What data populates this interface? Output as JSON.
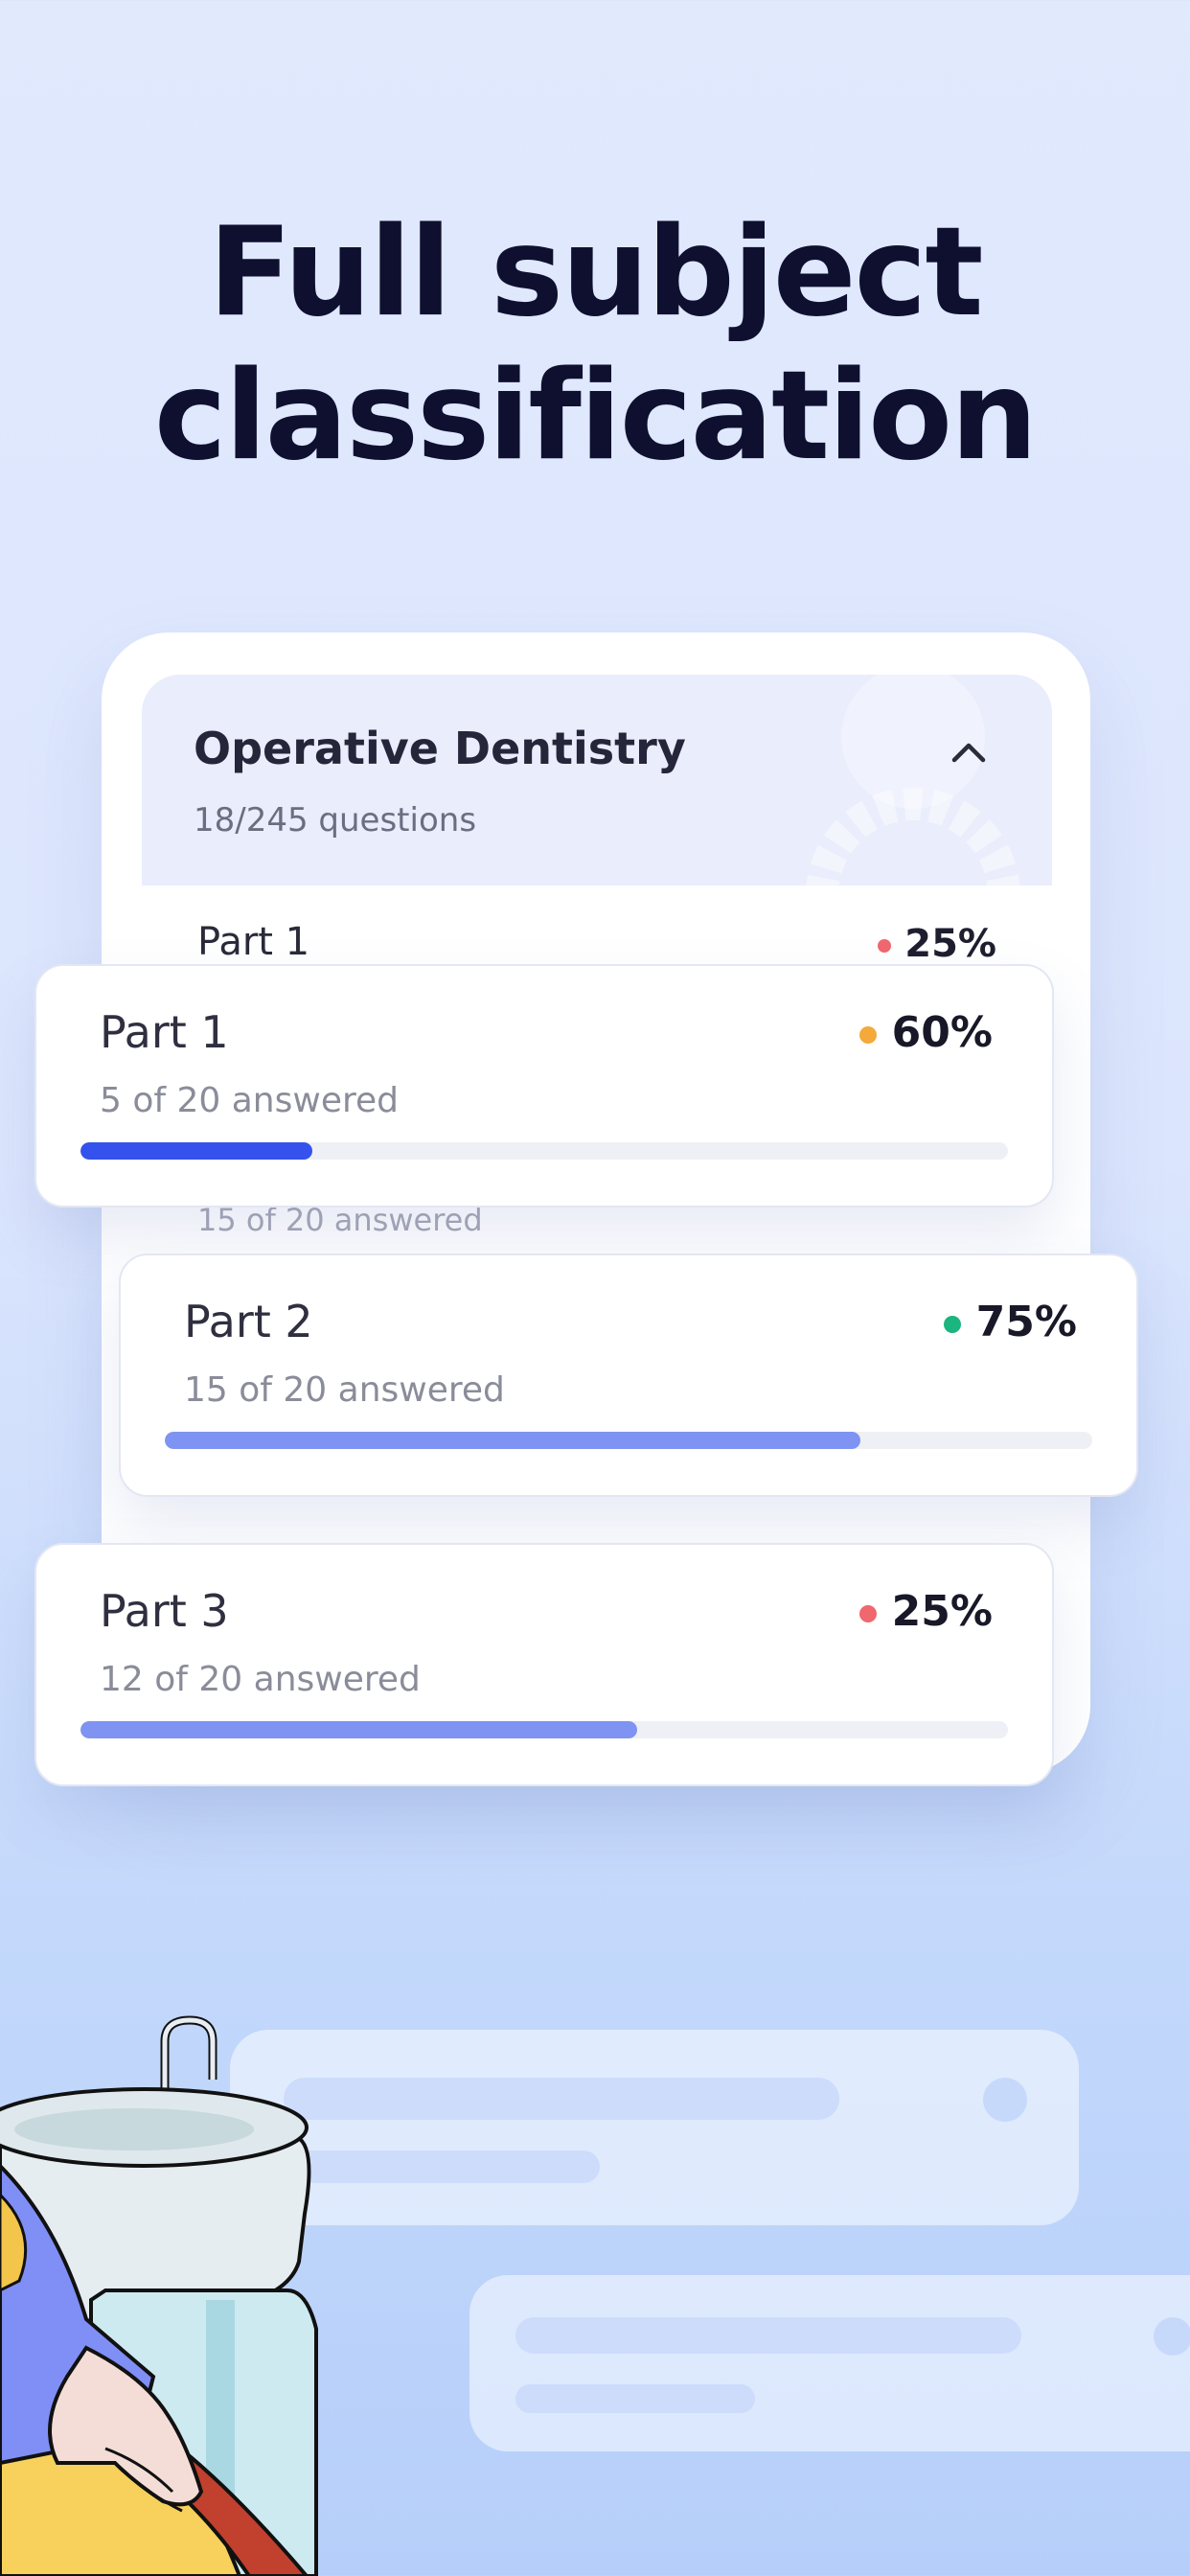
{
  "headline": {
    "line1": "Full subject",
    "line2": "classification"
  },
  "subject": {
    "title": "Operative Dentistry",
    "count": "18/245 questions",
    "toggle_icon": "chevron-up-icon"
  },
  "inner_list": {
    "row_title": "Part 1",
    "row_percent": "25%",
    "row_dot_color": "#f0676e",
    "row_sub": "15 of 20 answered"
  },
  "cards": [
    {
      "title": "Part 1",
      "percent": "60%",
      "answered": "5 of 20 answered",
      "progress": 0.25,
      "dot_color": "#f5a93a",
      "bar_color": "#3552ec"
    },
    {
      "title": "Part 2",
      "percent": "75%",
      "answered": "15 of 20 answered",
      "progress": 0.75,
      "dot_color": "#1bb57f",
      "bar_color": "#7f93f2"
    },
    {
      "title": "Part 3",
      "percent": "25%",
      "answered": "12 of 20 answered",
      "progress": 0.6,
      "dot_color": "#f0676e",
      "bar_color": "#7f93f2"
    }
  ],
  "colors": {
    "background_top": "#e1e9fd",
    "background_bottom": "#b6cffa",
    "headline": "#0f1030"
  },
  "illustration": "dental-patient-illustration"
}
